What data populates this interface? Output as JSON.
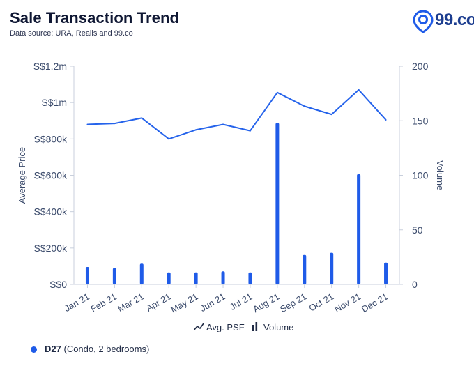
{
  "header": {
    "title": "Sale Transaction Trend",
    "subtitle": "Data source: URA, Realis and 99.co"
  },
  "logo": {
    "text": "99.co",
    "color": "#1f5be8"
  },
  "footer": {
    "code": "D27",
    "detail": "(Condo, 2 bedrooms)"
  },
  "colors": {
    "line": "#2563eb",
    "bar": "#1f5be8",
    "axis_text": "#3a4a6b"
  },
  "chart_data": {
    "type": "bar+line",
    "categories": [
      "Jan 21",
      "Feb 21",
      "Mar 21",
      "Apr 21",
      "May 21",
      "Jun 21",
      "Jul 21",
      "Aug 21",
      "Sep 21",
      "Oct 21",
      "Nov 21",
      "Dec 21"
    ],
    "series": [
      {
        "name": "Avg. PSF",
        "type": "line",
        "axis": "left",
        "values": [
          880000,
          885000,
          915000,
          800000,
          850000,
          880000,
          845000,
          1055000,
          980000,
          935000,
          1070000,
          905000
        ]
      },
      {
        "name": "Volume",
        "type": "bar",
        "axis": "right",
        "values": [
          16,
          15,
          19,
          11,
          11,
          12,
          11,
          148,
          27,
          29,
          101,
          20
        ]
      }
    ],
    "y_left": {
      "label": "Average Price",
      "range": [
        0,
        1200000
      ],
      "ticks": [
        0,
        200000,
        400000,
        600000,
        800000,
        1000000,
        1200000
      ],
      "tick_labels": [
        "S$0",
        "S$200k",
        "S$400k",
        "S$600k",
        "S$800k",
        "S$1m",
        "S$1.2m"
      ]
    },
    "y_right": {
      "label": "Volume",
      "range": [
        0,
        200
      ],
      "ticks": [
        0,
        50,
        100,
        150,
        200
      ],
      "tick_labels": [
        "0",
        "50",
        "100",
        "150",
        "200"
      ]
    },
    "grid": false,
    "legend_position": "bottom-center"
  }
}
